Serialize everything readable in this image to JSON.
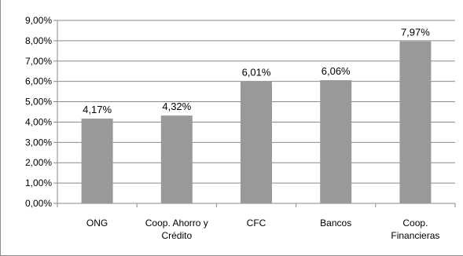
{
  "chart_data": {
    "type": "bar",
    "categories": [
      [
        "ONG"
      ],
      [
        "Coop. Ahorro y",
        "Crédito"
      ],
      [
        "CFC"
      ],
      [
        "Bancos"
      ],
      [
        "Coop.",
        "Financieras"
      ]
    ],
    "values": [
      4.17,
      4.32,
      6.01,
      6.06,
      7.97
    ],
    "data_labels": [
      "4,17%",
      "4,32%",
      "6,01%",
      "6,06%",
      "7,97%"
    ],
    "y_ticks": [
      "0,00%",
      "1,00%",
      "2,00%",
      "3,00%",
      "4,00%",
      "5,00%",
      "6,00%",
      "7,00%",
      "8,00%",
      "9,00%"
    ],
    "ylim": [
      0,
      9
    ],
    "grid": true,
    "title": "",
    "xlabel": "",
    "ylabel": "",
    "colors": {
      "bar": "#999999",
      "grid": "#8a8a8a"
    }
  }
}
